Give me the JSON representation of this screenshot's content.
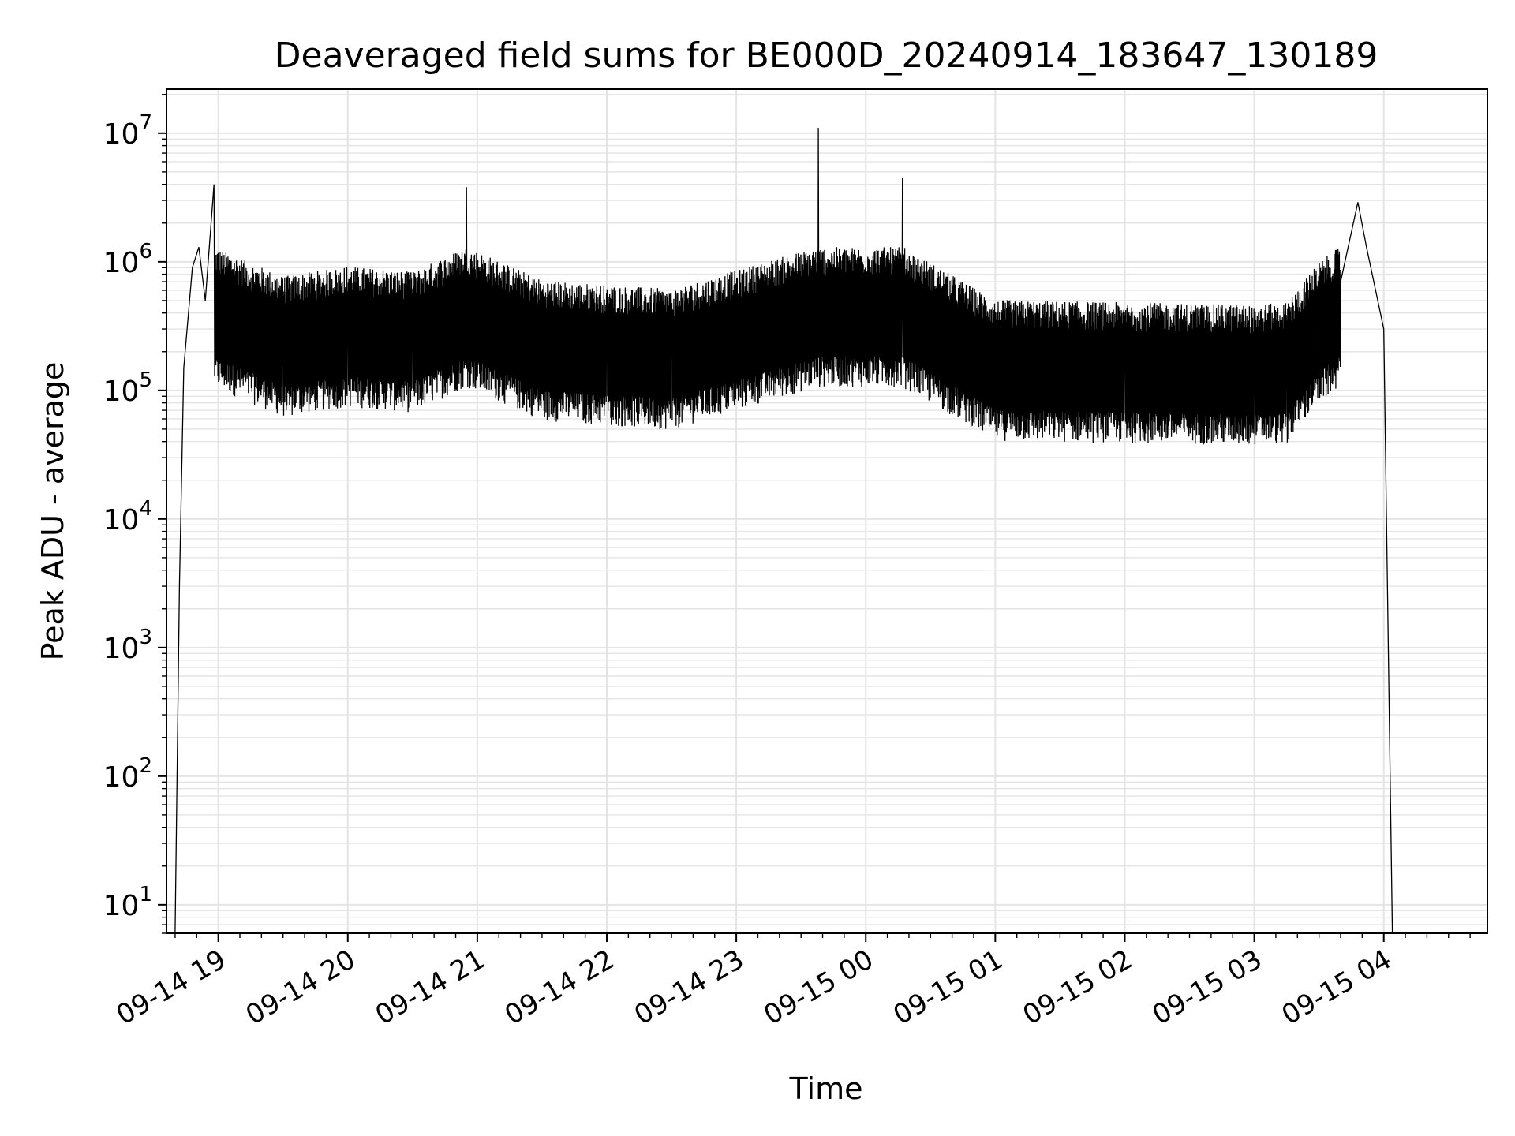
{
  "chart_data": {
    "type": "line",
    "title": "Deaveraged field sums for BE000D_20240914_183647_130189",
    "xlabel": "Time",
    "ylabel": "Peak ADU - average",
    "yscale": "log",
    "ylim": [
      6,
      22000000
    ],
    "xlim": [
      "2024-09-14 18:36",
      "2024-09-15 04:48"
    ],
    "grid": true,
    "x_ticks": [
      "09-14 19",
      "09-14 20",
      "09-14 21",
      "09-14 22",
      "09-14 23",
      "09-15 00",
      "09-15 01",
      "09-15 02",
      "09-15 03",
      "09-15 04"
    ],
    "y_ticks": [
      {
        "base": "10",
        "exp": "1"
      },
      {
        "base": "10",
        "exp": "2"
      },
      {
        "base": "10",
        "exp": "3"
      },
      {
        "base": "10",
        "exp": "4"
      },
      {
        "base": "10",
        "exp": "5"
      },
      {
        "base": "10",
        "exp": "6"
      },
      {
        "base": "10",
        "exp": "7"
      }
    ],
    "series": [
      {
        "color": "#000000",
        "points": [
          {
            "t": "2024-09-14 18:40",
            "y": 6
          },
          {
            "t": "2024-09-14 18:42",
            "y": 3000
          },
          {
            "t": "2024-09-14 18:44",
            "y": 150000
          },
          {
            "t": "2024-09-14 18:48",
            "y": 900000
          },
          {
            "t": "2024-09-14 18:51",
            "y": 1300000
          },
          {
            "t": "2024-09-14 18:54",
            "y": 500000
          },
          {
            "t": "2024-09-14 18:58",
            "y": 4000000
          },
          {
            "t": "2024-09-14 19:15",
            "y": 450000
          },
          {
            "t": "2024-09-14 19:30",
            "y": 350000
          },
          {
            "t": "2024-09-14 20:00",
            "y": 420000
          },
          {
            "t": "2024-09-14 20:30",
            "y": 380000
          },
          {
            "t": "2024-09-14 20:55",
            "y": 3800000
          },
          {
            "t": "2024-09-14 21:30",
            "y": 330000
          },
          {
            "t": "2024-09-14 22:00",
            "y": 300000
          },
          {
            "t": "2024-09-14 22:30",
            "y": 280000
          },
          {
            "t": "2024-09-14 23:38",
            "y": 11000000
          },
          {
            "t": "2024-09-15 00:17",
            "y": 4500000
          },
          {
            "t": "2024-09-15 01:00",
            "y": 230000
          },
          {
            "t": "2024-09-15 02:00",
            "y": 220000
          },
          {
            "t": "2024-09-15 03:00",
            "y": 210000
          },
          {
            "t": "2024-09-15 03:15",
            "y": 220000
          },
          {
            "t": "2024-09-15 03:30",
            "y": 450000
          },
          {
            "t": "2024-09-15 03:40",
            "y": 700000
          },
          {
            "t": "2024-09-15 03:48",
            "y": 2900000
          },
          {
            "t": "2024-09-15 03:52",
            "y": 1300000
          },
          {
            "t": "2024-09-15 04:00",
            "y": 300000
          },
          {
            "t": "2024-09-15 04:04",
            "y": 6
          }
        ]
      }
    ]
  }
}
